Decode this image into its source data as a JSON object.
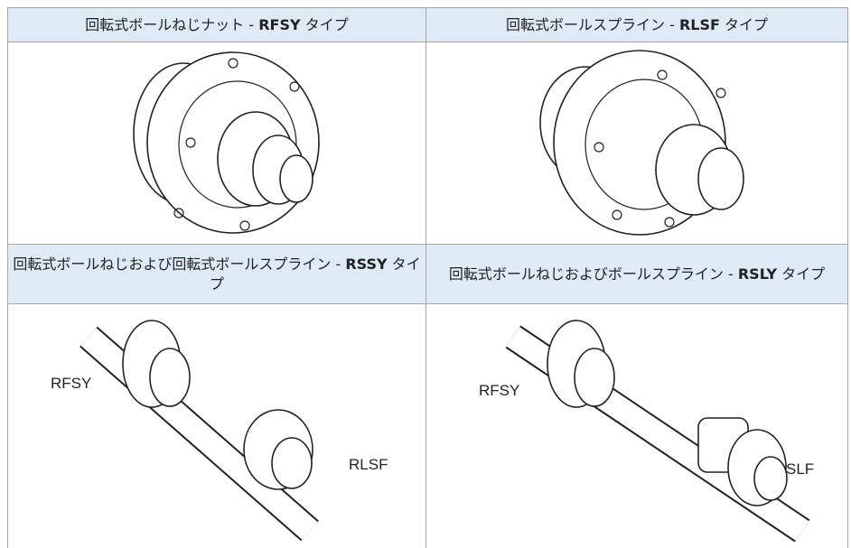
{
  "cells": [
    {
      "header": {
        "prefix": "回転式ボールねじナット - ",
        "code": "RFSY",
        "suffix": " タイプ"
      }
    },
    {
      "header": {
        "prefix": "回転式ボールスプライン - ",
        "code": "RLSF",
        "suffix": " タイプ"
      }
    },
    {
      "header": {
        "prefix": "回転式ボールねじおよび回転式ボールスプライン - ",
        "code": "RSSY",
        "suffix": " タイプ"
      },
      "labels": [
        "RFSY",
        "RLSF"
      ]
    },
    {
      "header": {
        "prefix": "回転式ボールねじおよびボールスプライン - ",
        "code": "RSLY",
        "suffix": " タイプ"
      },
      "labels": [
        "RFSY",
        "SLF"
      ]
    }
  ]
}
